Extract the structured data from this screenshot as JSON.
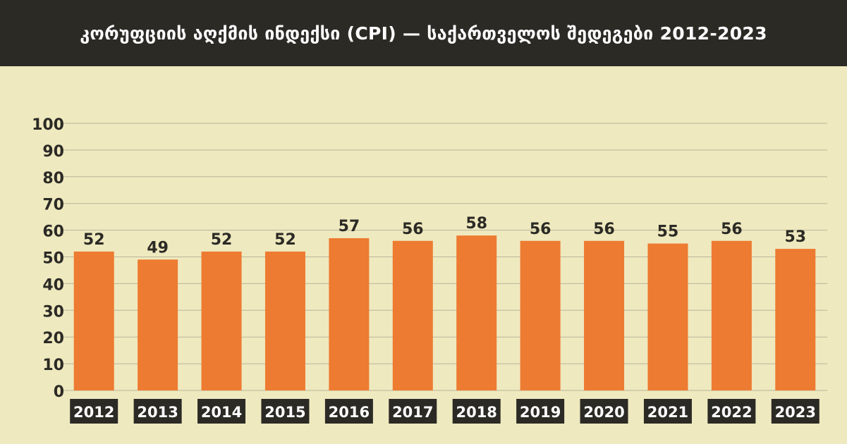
{
  "header": {
    "title": "კორუფციის აღქმის ინდექსი (CPI) — საქართველოს შედეგები 2012-2023"
  },
  "colors": {
    "background": "#efe9bf",
    "header_bg": "#2b2a25",
    "bar": "#ed7b31",
    "grid": "#b9b59a",
    "label_bg": "#2b2a25",
    "label_text": "#ffffff",
    "value_text": "#2b2a25"
  },
  "chart_data": {
    "type": "bar",
    "title": "კორუფციის აღქმის ინდექსი (CPI) — საქართველოს შედეგები 2012-2023",
    "categories": [
      "2012",
      "2013",
      "2014",
      "2015",
      "2016",
      "2017",
      "2018",
      "2019",
      "2020",
      "2021",
      "2022",
      "2023"
    ],
    "values": [
      52,
      49,
      52,
      52,
      57,
      56,
      58,
      56,
      56,
      55,
      56,
      53
    ],
    "ylim": [
      0,
      100
    ],
    "yticks": [
      0,
      10,
      20,
      30,
      40,
      50,
      60,
      70,
      80,
      90,
      100
    ],
    "xlabel": "",
    "ylabel": "",
    "grid": true,
    "data_labels": true
  }
}
